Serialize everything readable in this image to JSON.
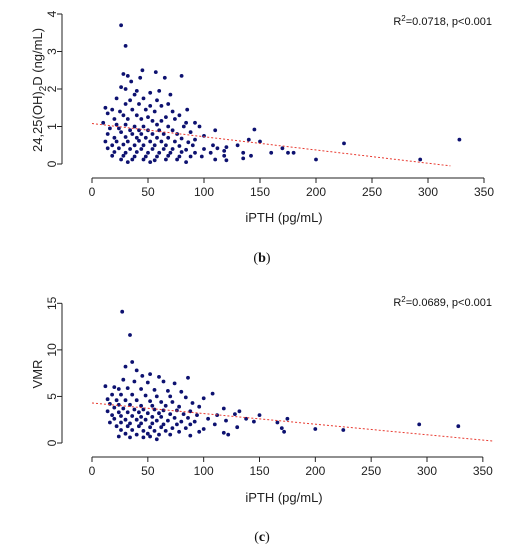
{
  "colors": {
    "points": "#0d1170",
    "trend": "#e8392f",
    "axis": "#222222"
  },
  "chart_data": [
    {
      "type": "scatter",
      "panel": {
        "open": "(",
        "letter": "b",
        "close": ")"
      },
      "xlabel": "iPTH (pg/mL)",
      "ylabel": {
        "main": "24,25(OH)",
        "sub": "2",
        "tail": "D (ng/mL)"
      },
      "annotation": {
        "r2_label": "R",
        "r2_sup": "2",
        "text": "=0.0718, p<0.001"
      },
      "xlim": [
        0,
        350
      ],
      "ylim": [
        0,
        4
      ],
      "xticks": [
        0,
        50,
        100,
        150,
        200,
        250,
        300,
        350
      ],
      "yticks": [
        0,
        1,
        2,
        3,
        4
      ],
      "trend": {
        "x": [
          0,
          320
        ],
        "y": [
          1.08,
          -0.05
        ]
      },
      "points": [
        [
          26,
          3.7
        ],
        [
          30,
          3.15
        ],
        [
          28,
          2.4
        ],
        [
          32,
          2.35
        ],
        [
          45,
          2.5
        ],
        [
          57,
          2.45
        ],
        [
          43,
          2.3
        ],
        [
          65,
          2.3
        ],
        [
          80,
          2.35
        ],
        [
          35,
          2.2
        ],
        [
          26,
          2.05
        ],
        [
          30,
          2.0
        ],
        [
          40,
          1.95
        ],
        [
          52,
          1.9
        ],
        [
          60,
          1.95
        ],
        [
          70,
          1.85
        ],
        [
          38,
          1.85
        ],
        [
          22,
          1.75
        ],
        [
          34,
          1.7
        ],
        [
          46,
          1.75
        ],
        [
          58,
          1.7
        ],
        [
          68,
          1.6
        ],
        [
          30,
          1.6
        ],
        [
          42,
          1.6
        ],
        [
          52,
          1.55
        ],
        [
          62,
          1.55
        ],
        [
          12,
          1.5
        ],
        [
          18,
          1.45
        ],
        [
          25,
          1.4
        ],
        [
          36,
          1.45
        ],
        [
          48,
          1.45
        ],
        [
          56,
          1.4
        ],
        [
          72,
          1.4
        ],
        [
          85,
          1.45
        ],
        [
          14,
          1.35
        ],
        [
          28,
          1.3
        ],
        [
          40,
          1.3
        ],
        [
          50,
          1.25
        ],
        [
          66,
          1.25
        ],
        [
          78,
          1.3
        ],
        [
          20,
          1.2
        ],
        [
          32,
          1.2
        ],
        [
          44,
          1.2
        ],
        [
          54,
          1.15
        ],
        [
          62,
          1.15
        ],
        [
          74,
          1.2
        ],
        [
          84,
          1.1
        ],
        [
          92,
          1.1
        ],
        [
          10,
          1.1
        ],
        [
          22,
          1.05
        ],
        [
          30,
          1.05
        ],
        [
          38,
          1.0
        ],
        [
          46,
          1.0
        ],
        [
          58,
          1.05
        ],
        [
          68,
          1.0
        ],
        [
          82,
          1.0
        ],
        [
          96,
          1.0
        ],
        [
          16,
          0.95
        ],
        [
          24,
          0.95
        ],
        [
          34,
          0.9
        ],
        [
          42,
          0.9
        ],
        [
          50,
          0.9
        ],
        [
          60,
          0.9
        ],
        [
          72,
          0.9
        ],
        [
          88,
          0.85
        ],
        [
          110,
          0.9
        ],
        [
          145,
          0.92
        ],
        [
          14,
          0.8
        ],
        [
          26,
          0.85
        ],
        [
          36,
          0.8
        ],
        [
          44,
          0.8
        ],
        [
          54,
          0.8
        ],
        [
          64,
          0.8
        ],
        [
          76,
          0.8
        ],
        [
          100,
          0.75
        ],
        [
          20,
          0.7
        ],
        [
          30,
          0.72
        ],
        [
          40,
          0.7
        ],
        [
          48,
          0.7
        ],
        [
          58,
          0.7
        ],
        [
          68,
          0.7
        ],
        [
          80,
          0.68
        ],
        [
          92,
          0.65
        ],
        [
          140,
          0.65
        ],
        [
          12,
          0.6
        ],
        [
          22,
          0.6
        ],
        [
          32,
          0.6
        ],
        [
          42,
          0.62
        ],
        [
          52,
          0.6
        ],
        [
          62,
          0.6
        ],
        [
          74,
          0.6
        ],
        [
          86,
          0.58
        ],
        [
          150,
          0.6
        ],
        [
          18,
          0.5
        ],
        [
          28,
          0.52
        ],
        [
          38,
          0.5
        ],
        [
          46,
          0.5
        ],
        [
          56,
          0.5
        ],
        [
          66,
          0.5
        ],
        [
          78,
          0.48
        ],
        [
          90,
          0.5
        ],
        [
          108,
          0.5
        ],
        [
          130,
          0.5
        ],
        [
          225,
          0.55
        ],
        [
          328,
          0.65
        ],
        [
          14,
          0.42
        ],
        [
          24,
          0.42
        ],
        [
          34,
          0.4
        ],
        [
          44,
          0.4
        ],
        [
          54,
          0.4
        ],
        [
          64,
          0.4
        ],
        [
          72,
          0.4
        ],
        [
          84,
          0.38
        ],
        [
          100,
          0.4
        ],
        [
          112,
          0.42
        ],
        [
          120,
          0.45
        ],
        [
          170,
          0.42
        ],
        [
          20,
          0.32
        ],
        [
          30,
          0.3
        ],
        [
          40,
          0.32
        ],
        [
          50,
          0.3
        ],
        [
          60,
          0.3
        ],
        [
          70,
          0.3
        ],
        [
          80,
          0.32
        ],
        [
          92,
          0.3
        ],
        [
          106,
          0.3
        ],
        [
          118,
          0.35
        ],
        [
          135,
          0.3
        ],
        [
          160,
          0.3
        ],
        [
          175,
          0.3
        ],
        [
          18,
          0.22
        ],
        [
          28,
          0.22
        ],
        [
          38,
          0.2
        ],
        [
          48,
          0.2
        ],
        [
          58,
          0.2
        ],
        [
          68,
          0.22
        ],
        [
          78,
          0.2
        ],
        [
          88,
          0.2
        ],
        [
          98,
          0.2
        ],
        [
          118,
          0.22
        ],
        [
          142,
          0.22
        ],
        [
          180,
          0.3
        ],
        [
          26,
          0.12
        ],
        [
          36,
          0.12
        ],
        [
          46,
          0.12
        ],
        [
          56,
          0.1
        ],
        [
          66,
          0.12
        ],
        [
          76,
          0.12
        ],
        [
          110,
          0.12
        ],
        [
          120,
          0.1
        ],
        [
          135,
          0.15
        ],
        [
          200,
          0.12
        ],
        [
          293,
          0.12
        ],
        [
          32,
          0.05
        ],
        [
          52,
          0.05
        ],
        [
          84,
          0.05
        ]
      ]
    },
    {
      "type": "scatter",
      "panel": {
        "open": "(",
        "letter": "c",
        "close": ")"
      },
      "xlabel": "iPTH (pg/mL)",
      "ylabel": {
        "main": "VMR",
        "sub": "",
        "tail": ""
      },
      "annotation": {
        "r2_label": "R",
        "r2_sup": "2",
        "text": "=0.0689, p<0.001"
      },
      "xlim": [
        0,
        360
      ],
      "ylim": [
        0,
        16
      ],
      "xticks": [
        0,
        50,
        100,
        150,
        200,
        250,
        300,
        350
      ],
      "yticks": [
        0,
        5,
        10,
        15
      ],
      "trend": {
        "x": [
          0,
          360
        ],
        "y": [
          4.3,
          0.2
        ]
      },
      "points": [
        [
          27,
          14.1
        ],
        [
          34,
          11.6
        ],
        [
          36,
          8.7
        ],
        [
          30,
          8.2
        ],
        [
          40,
          7.8
        ],
        [
          52,
          7.4
        ],
        [
          45,
          7.2
        ],
        [
          60,
          7.1
        ],
        [
          86,
          7.0
        ],
        [
          28,
          6.8
        ],
        [
          38,
          6.6
        ],
        [
          50,
          6.5
        ],
        [
          64,
          6.6
        ],
        [
          74,
          6.4
        ],
        [
          12,
          6.1
        ],
        [
          20,
          6.0
        ],
        [
          24,
          5.8
        ],
        [
          32,
          5.9
        ],
        [
          44,
          5.8
        ],
        [
          56,
          5.7
        ],
        [
          68,
          5.6
        ],
        [
          80,
          5.5
        ],
        [
          108,
          5.3
        ],
        [
          18,
          5.2
        ],
        [
          26,
          5.2
        ],
        [
          36,
          5.2
        ],
        [
          48,
          5.1
        ],
        [
          58,
          5.0
        ],
        [
          70,
          5.0
        ],
        [
          84,
          4.9
        ],
        [
          100,
          4.8
        ],
        [
          14,
          4.7
        ],
        [
          22,
          4.6
        ],
        [
          30,
          4.6
        ],
        [
          40,
          4.6
        ],
        [
          52,
          4.5
        ],
        [
          62,
          4.4
        ],
        [
          72,
          4.4
        ],
        [
          90,
          4.3
        ],
        [
          16,
          4.2
        ],
        [
          24,
          4.1
        ],
        [
          34,
          4.1
        ],
        [
          44,
          4.0
        ],
        [
          54,
          4.0
        ],
        [
          66,
          4.0
        ],
        [
          78,
          3.9
        ],
        [
          96,
          3.9
        ],
        [
          118,
          3.7
        ],
        [
          20,
          3.8
        ],
        [
          28,
          3.7
        ],
        [
          38,
          3.6
        ],
        [
          46,
          3.6
        ],
        [
          56,
          3.6
        ],
        [
          64,
          3.5
        ],
        [
          76,
          3.5
        ],
        [
          88,
          3.4
        ],
        [
          132,
          3.4
        ],
        [
          14,
          3.4
        ],
        [
          24,
          3.3
        ],
        [
          32,
          3.3
        ],
        [
          42,
          3.3
        ],
        [
          50,
          3.2
        ],
        [
          60,
          3.2
        ],
        [
          70,
          3.1
        ],
        [
          82,
          3.1
        ],
        [
          94,
          3.0
        ],
        [
          112,
          3.0
        ],
        [
          128,
          3.1
        ],
        [
          150,
          3.0
        ],
        [
          18,
          3.0
        ],
        [
          26,
          2.9
        ],
        [
          36,
          2.9
        ],
        [
          44,
          2.8
        ],
        [
          54,
          2.8
        ],
        [
          62,
          2.8
        ],
        [
          74,
          2.7
        ],
        [
          86,
          2.7
        ],
        [
          104,
          2.6
        ],
        [
          138,
          2.6
        ],
        [
          175,
          2.6
        ],
        [
          20,
          2.6
        ],
        [
          30,
          2.5
        ],
        [
          40,
          2.5
        ],
        [
          48,
          2.5
        ],
        [
          58,
          2.4
        ],
        [
          68,
          2.4
        ],
        [
          80,
          2.3
        ],
        [
          92,
          2.3
        ],
        [
          120,
          2.4
        ],
        [
          145,
          2.3
        ],
        [
          16,
          2.2
        ],
        [
          26,
          2.2
        ],
        [
          34,
          2.1
        ],
        [
          44,
          2.1
        ],
        [
          54,
          2.1
        ],
        [
          64,
          2.0
        ],
        [
          76,
          2.0
        ],
        [
          88,
          2.0
        ],
        [
          110,
          2.0
        ],
        [
          166,
          2.2
        ],
        [
          22,
          1.8
        ],
        [
          32,
          1.8
        ],
        [
          42,
          1.8
        ],
        [
          52,
          1.7
        ],
        [
          62,
          1.7
        ],
        [
          72,
          1.6
        ],
        [
          84,
          1.6
        ],
        [
          100,
          1.5
        ],
        [
          130,
          1.7
        ],
        [
          170,
          1.6
        ],
        [
          200,
          1.5
        ],
        [
          225,
          1.4
        ],
        [
          293,
          2.0
        ],
        [
          328,
          1.8
        ],
        [
          26,
          1.4
        ],
        [
          36,
          1.4
        ],
        [
          46,
          1.3
        ],
        [
          56,
          1.3
        ],
        [
          66,
          1.3
        ],
        [
          78,
          1.2
        ],
        [
          96,
          1.2
        ],
        [
          118,
          1.1
        ],
        [
          172,
          1.2
        ],
        [
          30,
          1.0
        ],
        [
          40,
          0.9
        ],
        [
          50,
          1.0
        ],
        [
          60,
          0.9
        ],
        [
          70,
          0.9
        ],
        [
          88,
          0.8
        ],
        [
          122,
          0.9
        ],
        [
          34,
          0.6
        ],
        [
          46,
          0.6
        ],
        [
          58,
          0.4
        ],
        [
          24,
          0.7
        ],
        [
          52,
          0.7
        ]
      ]
    }
  ]
}
